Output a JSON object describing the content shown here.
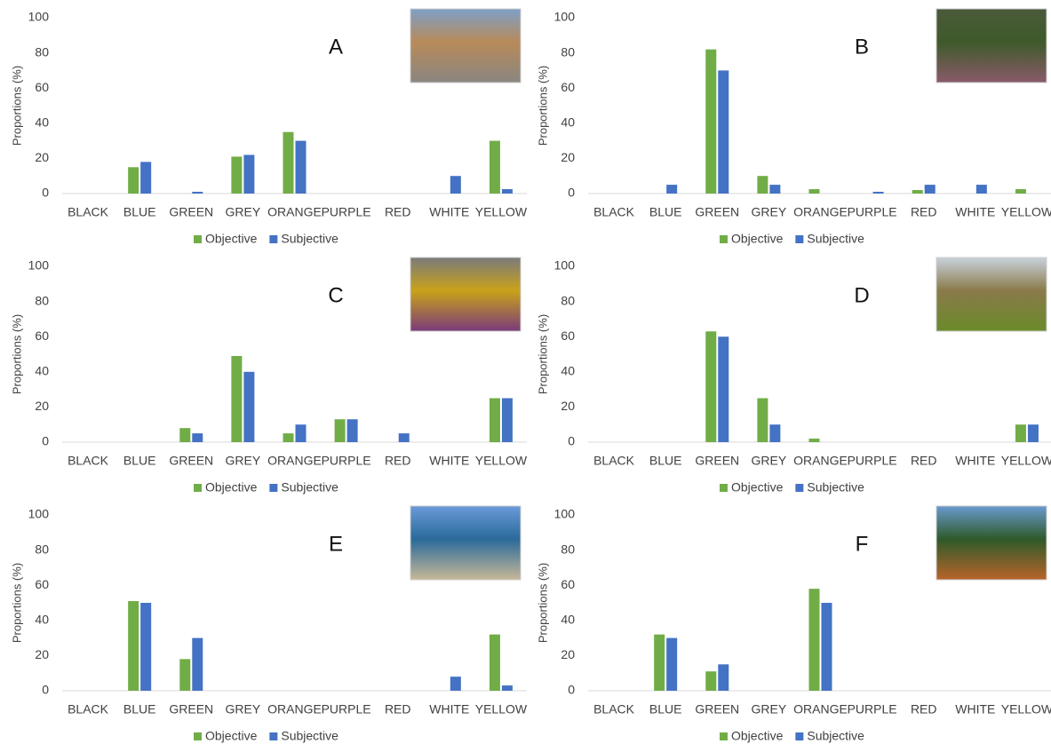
{
  "chart_data": [
    {
      "type": "bar",
      "title": "A",
      "ylabel": "Proportions (%)",
      "legend": "bottom",
      "grid": false,
      "categories": [
        "BLACK",
        "BLUE",
        "GREEN",
        "GREY",
        "ORANGE",
        "PURPLE",
        "RED",
        "WHITE",
        "YELLOW"
      ],
      "series": [
        {
          "name": "Objective",
          "color": "#70ad47",
          "values": [
            0,
            15,
            0,
            21,
            35,
            0,
            0,
            0,
            30
          ]
        },
        {
          "name": "Subjective",
          "color": "#4472c4",
          "values": [
            0,
            18,
            1,
            22,
            30,
            0,
            0,
            10,
            2.5
          ]
        }
      ],
      "ylim": [
        0,
        100
      ],
      "yticks": [
        0,
        20,
        40,
        60,
        80,
        100
      ]
    },
    {
      "type": "bar",
      "title": "B",
      "ylabel": "Proportions (%)",
      "legend": "bottom",
      "grid": false,
      "categories": [
        "BLACK",
        "BLUE",
        "GREEN",
        "GREY",
        "ORANGE",
        "PURPLE",
        "RED",
        "WHITE",
        "YELLOW"
      ],
      "series": [
        {
          "name": "Objective",
          "color": "#70ad47",
          "values": [
            0,
            0,
            82,
            10,
            2.5,
            0,
            2,
            0,
            2.5
          ]
        },
        {
          "name": "Subjective",
          "color": "#4472c4",
          "values": [
            0,
            5,
            70,
            5,
            0,
            1,
            5,
            5,
            0
          ]
        }
      ],
      "ylim": [
        0,
        100
      ],
      "yticks": [
        0,
        20,
        40,
        60,
        80,
        100
      ]
    },
    {
      "type": "bar",
      "title": "C",
      "ylabel": "Proportions (%)",
      "legend": "bottom",
      "grid": false,
      "categories": [
        "BLACK",
        "BLUE",
        "GREEN",
        "GREY",
        "ORANGE",
        "PURPLE",
        "RED",
        "WHITE",
        "YELLOW"
      ],
      "series": [
        {
          "name": "Objective",
          "color": "#70ad47",
          "values": [
            0,
            0,
            8,
            49,
            5,
            13,
            0,
            0,
            25
          ]
        },
        {
          "name": "Subjective",
          "color": "#4472c4",
          "values": [
            0,
            0,
            5,
            40,
            10,
            13,
            5,
            0,
            25
          ]
        }
      ],
      "ylim": [
        0,
        100
      ],
      "yticks": [
        0,
        20,
        40,
        60,
        80,
        100
      ]
    },
    {
      "type": "bar",
      "title": "D",
      "ylabel": "Proportions (%)",
      "legend": "bottom",
      "grid": false,
      "categories": [
        "BLACK",
        "BLUE",
        "GREEN",
        "GREY",
        "ORANGE",
        "PURPLE",
        "RED",
        "WHITE",
        "YELLOW"
      ],
      "series": [
        {
          "name": "Objective",
          "color": "#70ad47",
          "values": [
            0,
            0,
            63,
            25,
            2,
            0,
            0,
            0,
            10
          ]
        },
        {
          "name": "Subjective",
          "color": "#4472c4",
          "values": [
            0,
            0,
            60,
            10,
            0,
            0,
            0,
            0,
            10
          ]
        }
      ],
      "ylim": [
        0,
        100
      ],
      "yticks": [
        0,
        20,
        40,
        60,
        80,
        100
      ]
    },
    {
      "type": "bar",
      "title": "E",
      "ylabel": "Proportions (%)",
      "legend": "bottom",
      "grid": false,
      "categories": [
        "BLACK",
        "BLUE",
        "GREEN",
        "GREY",
        "ORANGE",
        "PURPLE",
        "RED",
        "WHITE",
        "YELLOW"
      ],
      "series": [
        {
          "name": "Objective",
          "color": "#70ad47",
          "values": [
            0,
            51,
            18,
            0,
            0,
            0,
            0,
            0,
            32
          ]
        },
        {
          "name": "Subjective",
          "color": "#4472c4",
          "values": [
            0,
            50,
            30,
            0,
            0,
            0,
            0,
            8,
            3
          ]
        }
      ],
      "ylim": [
        0,
        100
      ],
      "yticks": [
        0,
        20,
        40,
        60,
        80,
        100
      ]
    },
    {
      "type": "bar",
      "title": "F",
      "ylabel": "Proportions (%)",
      "legend": "bottom",
      "grid": false,
      "categories": [
        "BLACK",
        "BLUE",
        "GREEN",
        "GREY",
        "ORANGE",
        "PURPLE",
        "RED",
        "WHITE",
        "YELLOW"
      ],
      "series": [
        {
          "name": "Objective",
          "color": "#70ad47",
          "values": [
            0,
            32,
            11,
            0,
            58,
            0,
            0,
            0,
            0
          ]
        },
        {
          "name": "Subjective",
          "color": "#4472c4",
          "values": [
            0,
            30,
            15,
            0,
            50,
            0,
            0,
            0,
            0
          ]
        }
      ],
      "ylim": [
        0,
        100
      ],
      "yticks": [
        0,
        20,
        40,
        60,
        80,
        100
      ]
    }
  ]
}
